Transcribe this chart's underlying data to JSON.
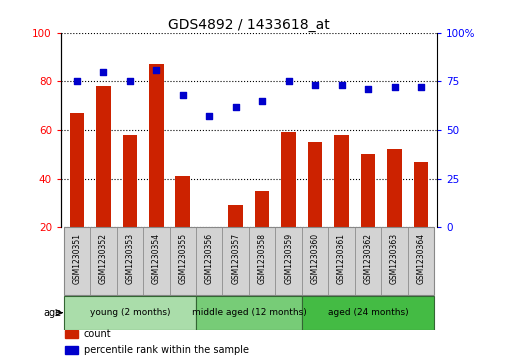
{
  "title": "GDS4892 / 1433618_at",
  "samples": [
    "GSM1230351",
    "GSM1230352",
    "GSM1230353",
    "GSM1230354",
    "GSM1230355",
    "GSM1230356",
    "GSM1230357",
    "GSM1230358",
    "GSM1230359",
    "GSM1230360",
    "GSM1230361",
    "GSM1230362",
    "GSM1230363",
    "GSM1230364"
  ],
  "counts": [
    67,
    78,
    58,
    87,
    41,
    20,
    29,
    35,
    59,
    55,
    58,
    50,
    52,
    47
  ],
  "percentiles": [
    75,
    80,
    75,
    81,
    68,
    57,
    62,
    65,
    75,
    73,
    73,
    71,
    72,
    72
  ],
  "bar_color": "#cc2200",
  "dot_color": "#0000cc",
  "ylim_left": [
    20,
    100
  ],
  "ylim_right": [
    0,
    100
  ],
  "yticks_left": [
    20,
    40,
    60,
    80,
    100
  ],
  "yticks_right": [
    0,
    25,
    50,
    75,
    100
  ],
  "ytick_right_labels": [
    "0",
    "25",
    "50",
    "75",
    "100%"
  ],
  "groups": [
    {
      "label": "young (2 months)",
      "start": 0,
      "end": 5,
      "color": "#aaddaa"
    },
    {
      "label": "middle aged (12 months)",
      "start": 5,
      "end": 9,
      "color": "#77cc77"
    },
    {
      "label": "aged (24 months)",
      "start": 9,
      "end": 14,
      "color": "#44bb44"
    }
  ],
  "sample_box_color": "#d3d3d3",
  "sample_box_edge_color": "#888888",
  "legend_items": [
    {
      "label": "count",
      "color": "#cc2200"
    },
    {
      "label": "percentile rank within the sample",
      "color": "#0000cc"
    }
  ],
  "age_label": "age",
  "background_color": "#ffffff"
}
